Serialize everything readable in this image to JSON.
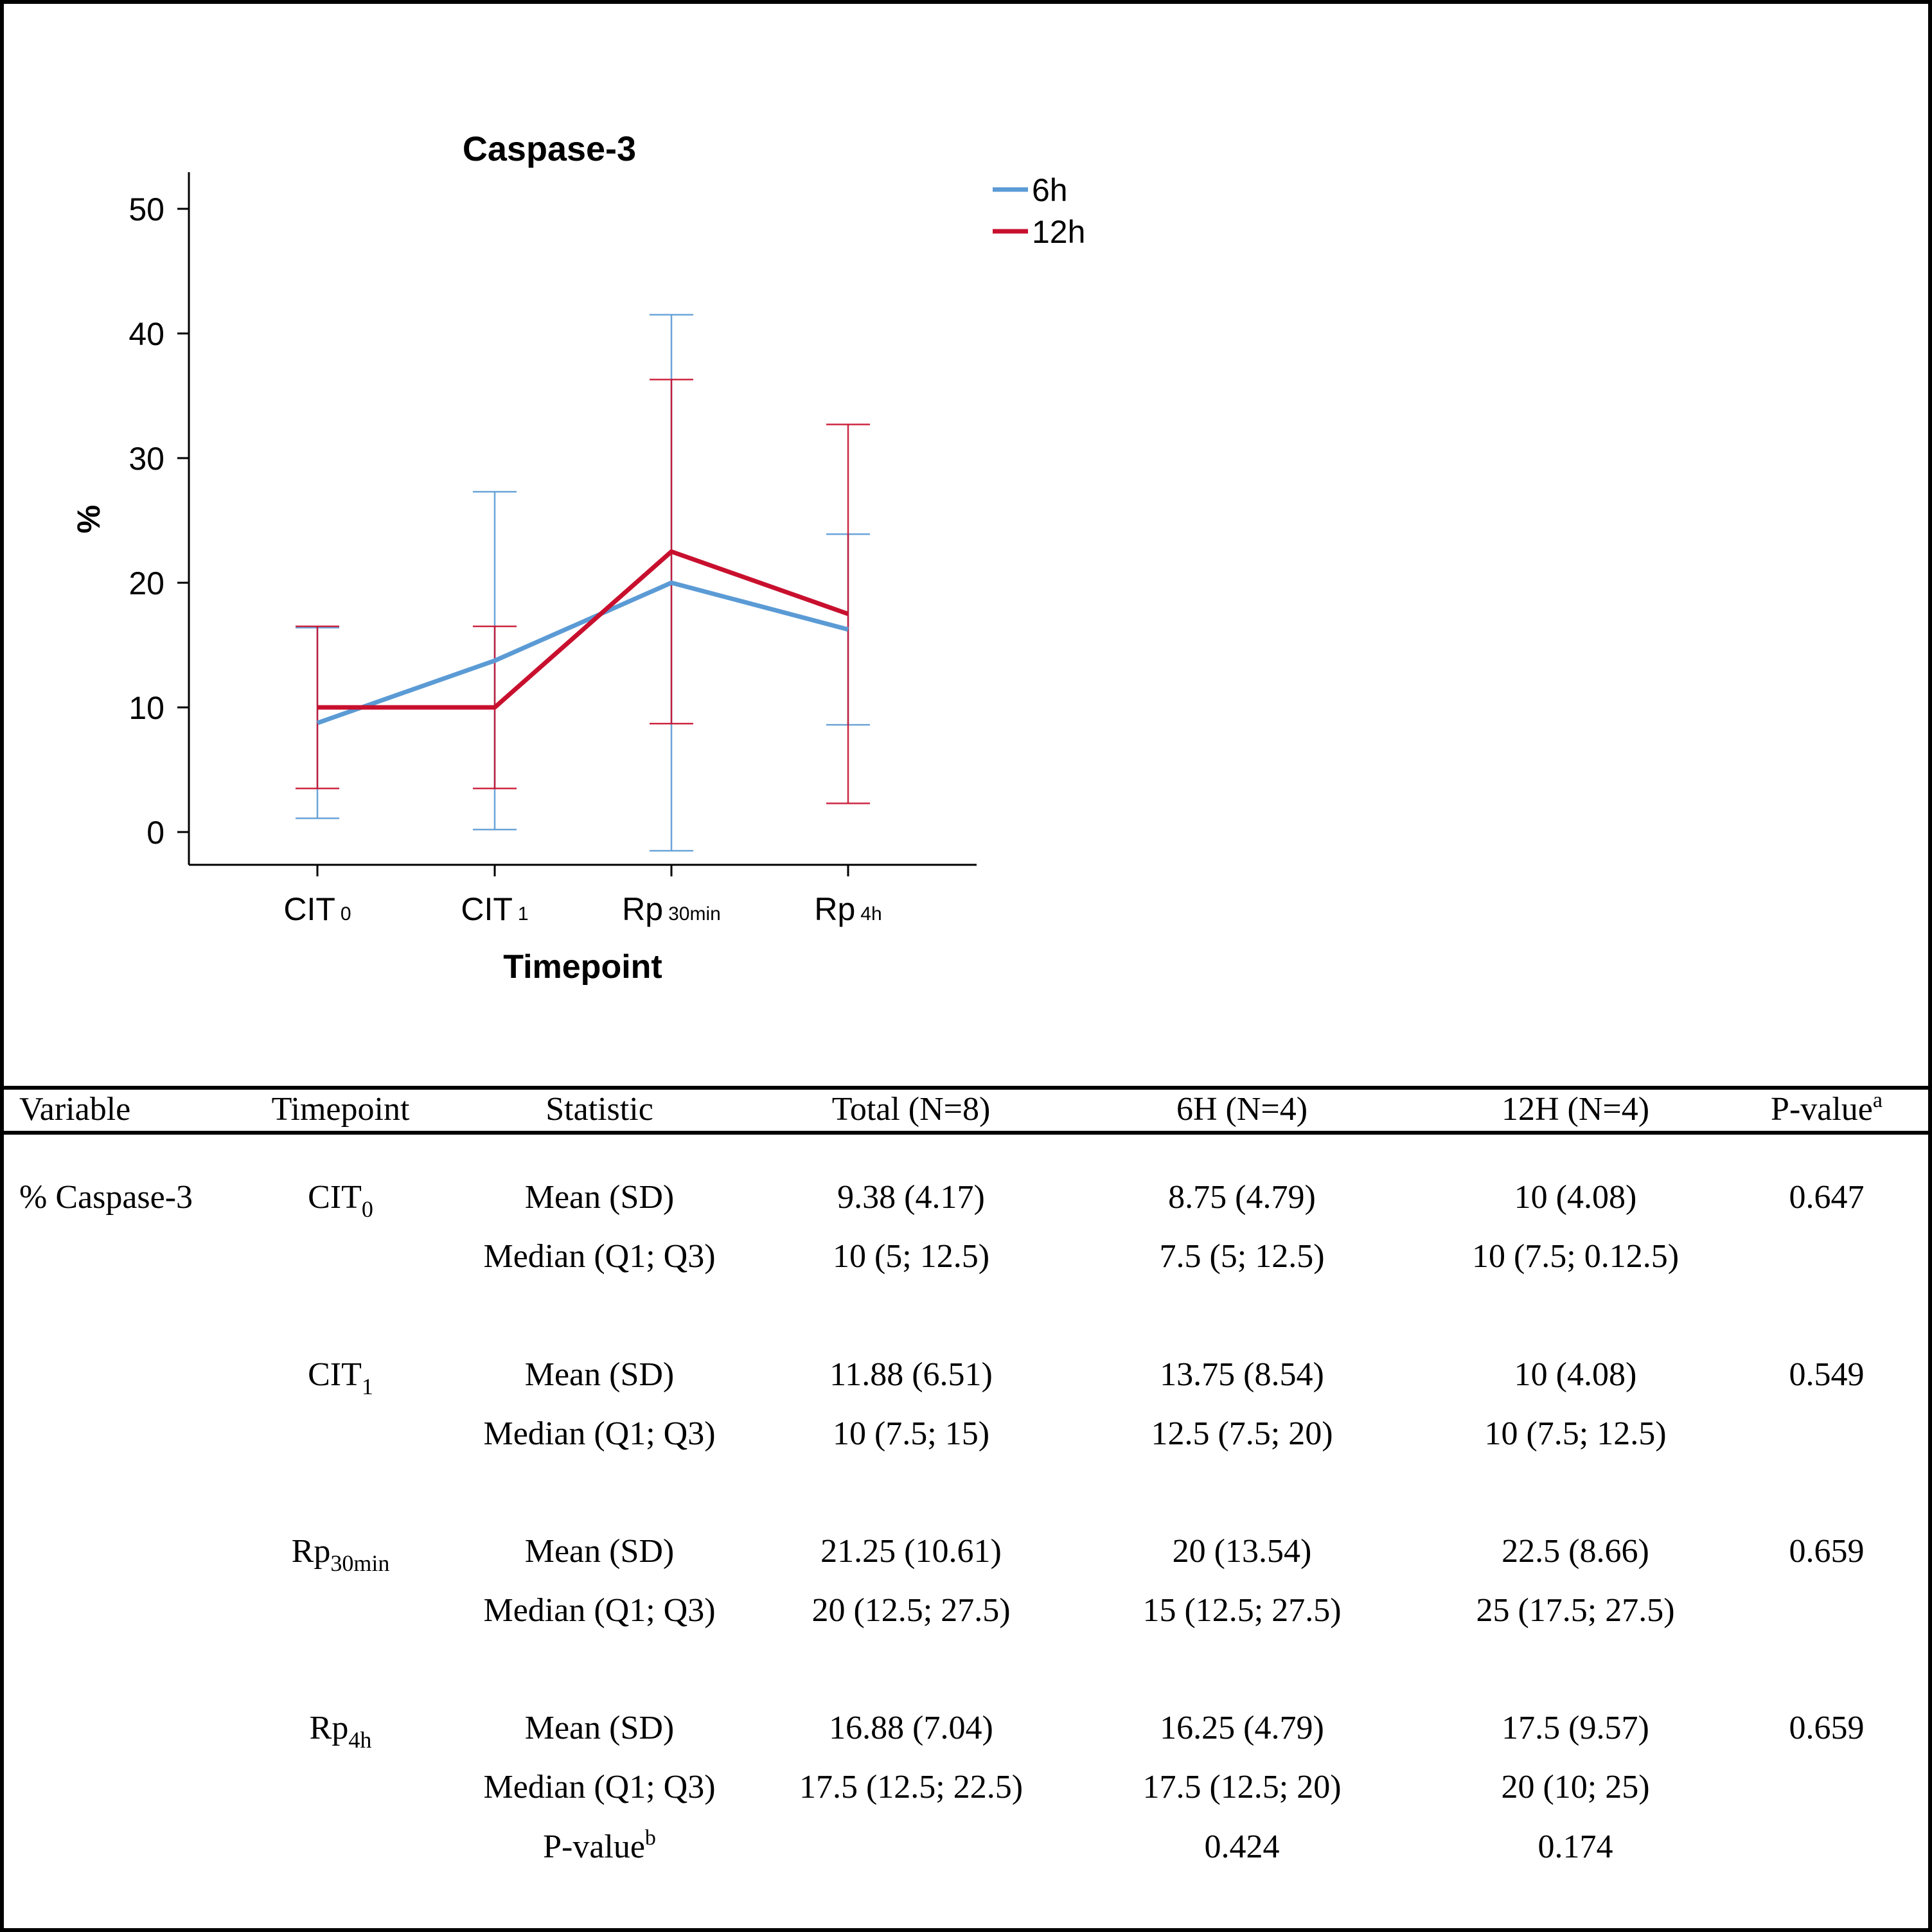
{
  "chart_data": {
    "type": "line",
    "title": "Caspase-3",
    "xlabel": "Timepoint",
    "ylabel": "%",
    "ylim": [
      -2.5,
      53
    ],
    "yticks": [
      0,
      10,
      20,
      30,
      40,
      50
    ],
    "categories": [
      {
        "base": "CIT",
        "sub": "0"
      },
      {
        "base": "CIT",
        "sub": "1"
      },
      {
        "base": "Rp",
        "sub": "30min"
      },
      {
        "base": "Rp",
        "sub": "4h"
      }
    ],
    "legend_position": "top-right of plot",
    "series": [
      {
        "name": "6h",
        "color": "#5b9bd5",
        "values": [
          8.75,
          13.75,
          20.0,
          16.25
        ],
        "err_low": [
          1.1,
          0.2,
          -1.5,
          8.6
        ],
        "err_high": [
          16.4,
          27.3,
          41.5,
          23.9
        ]
      },
      {
        "name": "12h",
        "color": "#c8102e",
        "values": [
          10.0,
          10.0,
          22.5,
          17.5
        ],
        "err_low": [
          3.5,
          3.5,
          8.7,
          2.3
        ],
        "err_high": [
          16.5,
          16.5,
          36.3,
          32.7
        ]
      }
    ]
  },
  "table": {
    "headers": {
      "variable": "Variable",
      "timepoint": "Timepoint",
      "statistic": "Statistic",
      "total": "Total (N=8)",
      "six": "6H (N=4)",
      "twelve": "12H (N=4)",
      "pvalue": "P-value",
      "pvalue_sup": "a"
    },
    "variable": "% Caspase-3",
    "groups": [
      {
        "tp_base": "CIT",
        "tp_sub": "0",
        "rows": [
          {
            "stat": "Mean (SD)",
            "total": "9.38 (4.17)",
            "six": "8.75 (4.79)",
            "twelve": "10 (4.08)",
            "p": "0.647"
          },
          {
            "stat": "Median (Q1; Q3)",
            "total": "10 (5; 12.5)",
            "six": "7.5 (5; 12.5)",
            "twelve": "10 (7.5; 0.12.5)",
            "p": ""
          }
        ]
      },
      {
        "tp_base": "CIT",
        "tp_sub": "1",
        "rows": [
          {
            "stat": "Mean (SD)",
            "total": "11.88 (6.51)",
            "six": "13.75 (8.54)",
            "twelve": "10 (4.08)",
            "p": "0.549"
          },
          {
            "stat": "Median (Q1; Q3)",
            "total": "10 (7.5; 15)",
            "six": "12.5 (7.5; 20)",
            "twelve": "10 (7.5; 12.5)",
            "p": ""
          }
        ]
      },
      {
        "tp_base": "Rp",
        "tp_sub": "30min",
        "rows": [
          {
            "stat": "Mean (SD)",
            "total": "21.25 (10.61)",
            "six": "20 (13.54)",
            "twelve": "22.5 (8.66)",
            "p": "0.659"
          },
          {
            "stat": "Median (Q1; Q3)",
            "total": "20 (12.5; 27.5)",
            "six": "15 (12.5; 27.5)",
            "twelve": "25 (17.5; 27.5)",
            "p": ""
          }
        ]
      },
      {
        "tp_base": "Rp",
        "tp_sub": "4h",
        "rows": [
          {
            "stat": "Mean (SD)",
            "total": "16.88 (7.04)",
            "six": "16.25 (4.79)",
            "twelve": "17.5 (9.57)",
            "p": "0.659"
          },
          {
            "stat": "Median (Q1; Q3)",
            "total": "17.5 (12.5; 22.5)",
            "six": "17.5 (12.5; 20)",
            "twelve": "20 (10; 25)",
            "p": ""
          }
        ]
      }
    ],
    "footer": {
      "label": "P-value",
      "label_sup": "b",
      "six": "0.424",
      "twelve": "0.174"
    }
  }
}
